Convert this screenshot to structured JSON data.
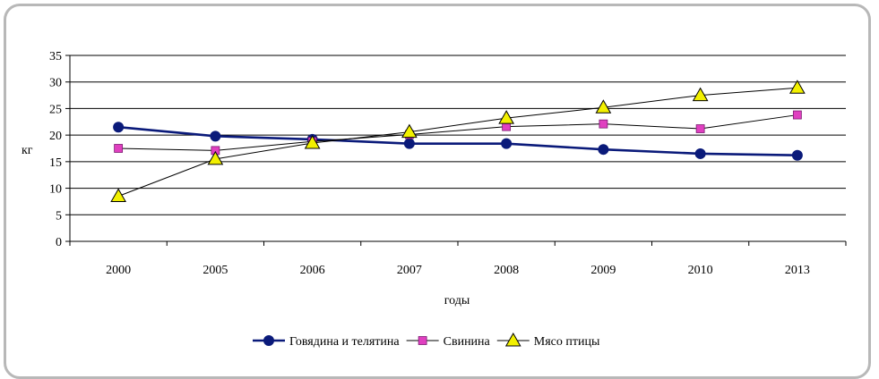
{
  "chart_data": {
    "type": "line",
    "title": "",
    "xlabel": "годы",
    "ylabel": "кг",
    "categories": [
      "2000",
      "2005",
      "2006",
      "2007",
      "2008",
      "2009",
      "2010",
      "2013"
    ],
    "ylim": [
      0,
      35
    ],
    "yticks": [
      0,
      5,
      10,
      15,
      20,
      25,
      30,
      35
    ],
    "grid": "horizontal",
    "legend_position": "bottom",
    "series": [
      {
        "name": "Говядина и телятина",
        "marker": "circle",
        "color": "#0a1a7a",
        "values": [
          21.5,
          19.8,
          19.2,
          18.4,
          18.4,
          17.3,
          16.5,
          16.2
        ]
      },
      {
        "name": "Свинина",
        "marker": "square",
        "color": "#e040c0",
        "values": [
          17.5,
          17.1,
          18.8,
          20.1,
          21.6,
          22.1,
          21.2,
          23.8
        ]
      },
      {
        "name": "Мясо птицы",
        "marker": "triangle",
        "color": "#f2f000",
        "values": [
          8.5,
          15.5,
          18.5,
          20.6,
          23.2,
          25.2,
          27.5,
          28.9
        ]
      }
    ]
  }
}
